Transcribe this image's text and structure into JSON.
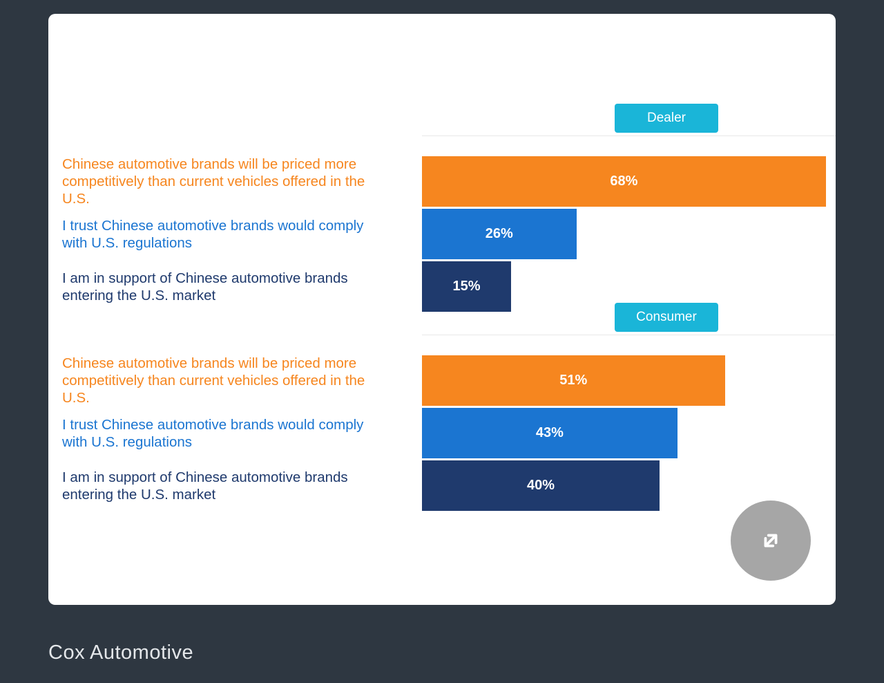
{
  "page": {
    "caption": "Cox Automotive"
  },
  "colors": {
    "background": "#2e3741",
    "card": "#ffffff",
    "badge": "#1ab5d8",
    "orange": "#f6861f",
    "blue": "#1b75d1",
    "navy": "#1f3a6d",
    "separator": "#e8e8e8",
    "expand_button": "#a6a6a6",
    "bar_value_text": "#ffffff"
  },
  "icons": {
    "expand": "diagonal-double-arrow-expand-icon"
  },
  "chart_data": {
    "type": "bar",
    "orientation": "horizontal",
    "unit": "%",
    "xlim": [
      0,
      100
    ],
    "grid": false,
    "legend_position": "badge-above-each-group-right",
    "categories": [
      "Chinese automotive brands will be priced more competitively than current vehicles offered in the U.S.",
      "I trust Chinese automotive brands would comply with U.S. regulations",
      "I am in support of Chinese automotive brands entering the U.S. market"
    ],
    "series": [
      {
        "name": "Dealer",
        "values": [
          68,
          26,
          15
        ]
      },
      {
        "name": "Consumer",
        "values": [
          51,
          43,
          40
        ]
      }
    ],
    "bar_colors": [
      "#f6861f",
      "#1b75d1",
      "#1f3a6d"
    ],
    "value_labels": [
      [
        "68%",
        "26%",
        "15%"
      ],
      [
        "51%",
        "43%",
        "40%"
      ]
    ]
  }
}
